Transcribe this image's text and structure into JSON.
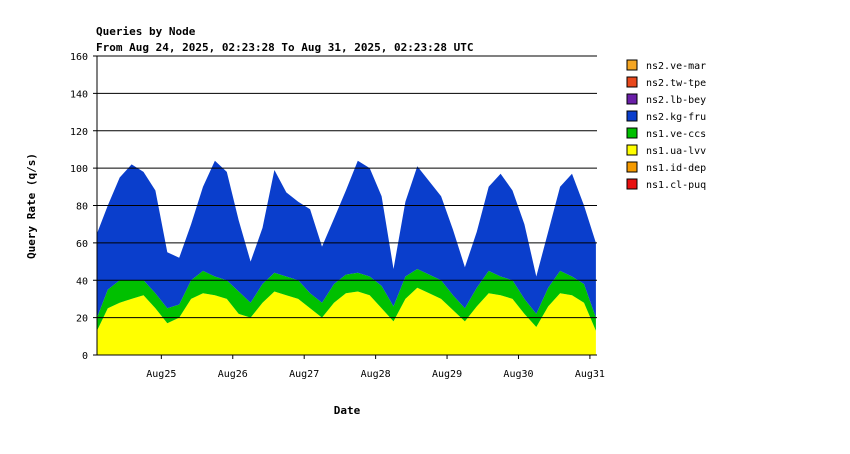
{
  "chart_data": {
    "type": "area",
    "stacked": true,
    "title": "Queries by Node",
    "subtitle": "From Aug 24, 2025, 02:23:28 To Aug 31, 2025, 02:23:28 UTC",
    "xlabel": "Date",
    "ylabel": "Query Rate (q/s)",
    "ylim": [
      0,
      160
    ],
    "yticks": [
      0,
      20,
      40,
      60,
      80,
      100,
      120,
      140,
      160
    ],
    "xlim": [
      "2025-08-24 02:23",
      "2025-08-31 02:23"
    ],
    "xticks": [
      "Aug25",
      "Aug26",
      "Aug27",
      "Aug28",
      "Aug29",
      "Aug30",
      "Aug31"
    ],
    "grid": "horizontal",
    "legend_position": "right",
    "x": [
      "2025-08-24 02:00",
      "2025-08-24 06:00",
      "2025-08-24 10:00",
      "2025-08-24 14:00",
      "2025-08-24 18:00",
      "2025-08-24 22:00",
      "2025-08-25 02:00",
      "2025-08-25 06:00",
      "2025-08-25 10:00",
      "2025-08-25 14:00",
      "2025-08-25 18:00",
      "2025-08-25 22:00",
      "2025-08-26 02:00",
      "2025-08-26 06:00",
      "2025-08-26 10:00",
      "2025-08-26 14:00",
      "2025-08-26 18:00",
      "2025-08-26 22:00",
      "2025-08-27 02:00",
      "2025-08-27 06:00",
      "2025-08-27 10:00",
      "2025-08-27 14:00",
      "2025-08-27 18:00",
      "2025-08-27 22:00",
      "2025-08-28 02:00",
      "2025-08-28 06:00",
      "2025-08-28 10:00",
      "2025-08-28 14:00",
      "2025-08-28 18:00",
      "2025-08-28 22:00",
      "2025-08-29 02:00",
      "2025-08-29 06:00",
      "2025-08-29 10:00",
      "2025-08-29 14:00",
      "2025-08-29 18:00",
      "2025-08-29 22:00",
      "2025-08-30 02:00",
      "2025-08-30 06:00",
      "2025-08-30 10:00",
      "2025-08-30 14:00",
      "2025-08-30 18:00",
      "2025-08-30 22:00",
      "2025-08-31 02:00"
    ],
    "series": [
      {
        "name": "ns2.ve-mar",
        "color": "#f5a623",
        "values": [
          0,
          0,
          0,
          0,
          0,
          0,
          0,
          0,
          0,
          0,
          0,
          0,
          0,
          0,
          0,
          0,
          0,
          0,
          0,
          0,
          0,
          0,
          0,
          0,
          0,
          0,
          0,
          0,
          0,
          0,
          0,
          0,
          0,
          0,
          0,
          0,
          0,
          0,
          0,
          0,
          0,
          0,
          0
        ]
      },
      {
        "name": "ns2.tw-tpe",
        "color": "#e8481c",
        "values": [
          0,
          0,
          0,
          0,
          0,
          0,
          0,
          0,
          0,
          0,
          0,
          0,
          0,
          0,
          0,
          0,
          0,
          0,
          0,
          0,
          0,
          0,
          0,
          0,
          0,
          0,
          0,
          0,
          0,
          0,
          0,
          0,
          0,
          0,
          0,
          0,
          0,
          0,
          0,
          0,
          0,
          0,
          0
        ]
      },
      {
        "name": "ns2.lb-bey",
        "color": "#6a1fa8",
        "values": [
          0,
          0,
          0,
          0,
          0,
          0,
          0,
          0,
          0,
          0,
          0,
          0,
          0,
          0,
          0,
          0,
          0,
          0,
          0,
          0,
          0,
          0,
          0,
          0,
          0,
          0,
          0,
          0,
          0,
          0,
          0,
          0,
          0,
          0,
          0,
          0,
          0,
          0,
          0,
          0,
          0,
          0,
          0
        ]
      },
      {
        "name": "ns2.kg-fru",
        "color": "#0a3ecc",
        "values": [
          45,
          45,
          55,
          62,
          58,
          55,
          30,
          25,
          30,
          45,
          62,
          58,
          38,
          22,
          30,
          55,
          45,
          42,
          45,
          30,
          35,
          45,
          60,
          58,
          48,
          20,
          40,
          55,
          50,
          45,
          35,
          22,
          30,
          45,
          55,
          48,
          40,
          20,
          30,
          45,
          55,
          42,
          40
        ]
      },
      {
        "name": "ns1.ve-ccs",
        "color": "#00c000",
        "values": [
          7,
          10,
          12,
          10,
          8,
          8,
          8,
          7,
          10,
          12,
          10,
          10,
          12,
          8,
          10,
          10,
          10,
          10,
          8,
          8,
          10,
          10,
          10,
          10,
          12,
          8,
          12,
          10,
          10,
          10,
          8,
          7,
          10,
          12,
          10,
          10,
          8,
          7,
          10,
          12,
          10,
          10,
          7
        ]
      },
      {
        "name": "ns1.ua-lvv",
        "color": "#ffff00",
        "values": [
          13,
          25,
          28,
          30,
          32,
          25,
          17,
          20,
          30,
          33,
          32,
          30,
          22,
          20,
          28,
          34,
          32,
          30,
          25,
          20,
          28,
          33,
          34,
          32,
          25,
          18,
          30,
          36,
          33,
          30,
          24,
          18,
          26,
          33,
          32,
          30,
          22,
          15,
          26,
          33,
          32,
          28,
          13
        ]
      },
      {
        "name": "ns1.id-dep",
        "color": "#f59a00",
        "values": [
          0,
          0,
          0,
          0,
          0,
          0,
          0,
          0,
          0,
          0,
          0,
          0,
          0,
          0,
          0,
          0,
          0,
          0,
          0,
          0,
          0,
          0,
          0,
          0,
          0,
          0,
          0,
          0,
          0,
          0,
          0,
          0,
          0,
          0,
          0,
          0,
          0,
          0,
          0,
          0,
          0,
          0,
          0
        ]
      },
      {
        "name": "ns1.cl-puq",
        "color": "#e81010",
        "values": [
          0,
          0,
          0,
          0,
          0,
          0,
          0,
          0,
          0,
          0,
          0,
          0,
          0,
          0,
          0,
          0,
          0,
          0,
          0,
          0,
          0,
          0,
          0,
          0,
          0,
          0,
          0,
          0,
          0,
          0,
          0,
          0,
          0,
          0,
          0,
          0,
          0,
          0,
          0,
          0,
          0,
          0,
          0
        ]
      }
    ],
    "legend_order": [
      "ns2.ve-mar",
      "ns2.tw-tpe",
      "ns2.lb-bey",
      "ns2.kg-fru",
      "ns1.ve-ccs",
      "ns1.ua-lvv",
      "ns1.id-dep",
      "ns1.cl-puq"
    ]
  }
}
